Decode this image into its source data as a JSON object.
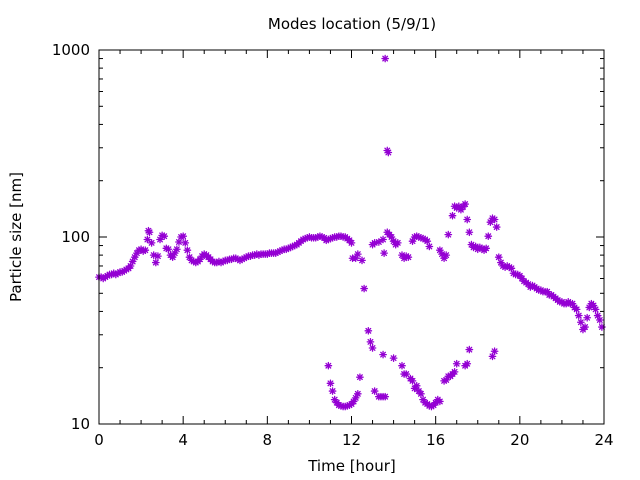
{
  "chart_data": {
    "type": "scatter",
    "title": "Modes location (5/9/1)",
    "xlabel": "Time [hour]",
    "ylabel": "Particle size [nm]",
    "xlim": [
      0,
      24
    ],
    "ylim": [
      10,
      1000
    ],
    "yscale": "log",
    "x_ticks": [
      0,
      4,
      8,
      12,
      16,
      20,
      24
    ],
    "x_tick_labels": [
      "0",
      "4",
      "8",
      "12",
      "16",
      "20",
      "24"
    ],
    "x_minor_step": 1,
    "y_ticks": [
      10,
      100,
      1000
    ],
    "y_tick_labels": [
      "10",
      "100",
      "1000"
    ],
    "grid": false,
    "marker": "asterisk",
    "color": "#9400d3",
    "series": [
      {
        "points": [
          [
            0.0,
            61
          ],
          [
            0.1,
            61
          ],
          [
            0.2,
            60
          ],
          [
            0.3,
            61
          ],
          [
            0.4,
            62
          ],
          [
            0.5,
            63
          ],
          [
            0.6,
            63
          ],
          [
            0.7,
            64
          ],
          [
            0.8,
            63
          ],
          [
            0.9,
            64
          ],
          [
            1.0,
            65
          ],
          [
            1.1,
            65
          ],
          [
            1.2,
            66
          ],
          [
            1.3,
            67
          ],
          [
            1.4,
            68
          ],
          [
            1.5,
            70
          ],
          [
            1.6,
            74
          ],
          [
            1.7,
            78
          ],
          [
            1.8,
            82
          ],
          [
            1.9,
            85
          ],
          [
            2.0,
            86
          ],
          [
            2.1,
            84
          ],
          [
            2.2,
            85
          ],
          [
            2.3,
            97
          ],
          [
            2.35,
            108
          ],
          [
            2.4,
            106
          ],
          [
            2.5,
            93
          ],
          [
            2.6,
            80
          ],
          [
            2.7,
            73
          ],
          [
            2.8,
            79
          ],
          [
            2.9,
            97
          ],
          [
            3.0,
            102
          ],
          [
            3.1,
            101
          ],
          [
            3.2,
            87
          ],
          [
            3.3,
            86
          ],
          [
            3.4,
            80
          ],
          [
            3.5,
            78
          ],
          [
            3.6,
            82
          ],
          [
            3.7,
            86
          ],
          [
            3.8,
            94
          ],
          [
            3.9,
            100
          ],
          [
            4.0,
            101
          ],
          [
            4.1,
            93
          ],
          [
            4.2,
            85
          ],
          [
            4.3,
            78
          ],
          [
            4.4,
            75
          ],
          [
            4.5,
            74
          ],
          [
            4.6,
            73
          ],
          [
            4.7,
            74
          ],
          [
            4.8,
            76
          ],
          [
            4.9,
            79
          ],
          [
            5.0,
            81
          ],
          [
            5.1,
            80
          ],
          [
            5.2,
            78
          ],
          [
            5.3,
            76
          ],
          [
            5.4,
            74
          ],
          [
            5.5,
            73
          ],
          [
            5.6,
            73
          ],
          [
            5.7,
            74
          ],
          [
            5.8,
            73
          ],
          [
            5.9,
            74
          ],
          [
            6.0,
            75
          ],
          [
            6.1,
            75
          ],
          [
            6.2,
            76
          ],
          [
            6.3,
            76
          ],
          [
            6.4,
            77
          ],
          [
            6.5,
            77
          ],
          [
            6.6,
            76
          ],
          [
            6.7,
            75
          ],
          [
            6.8,
            76
          ],
          [
            6.9,
            77
          ],
          [
            7.0,
            78
          ],
          [
            7.1,
            79
          ],
          [
            7.2,
            79
          ],
          [
            7.3,
            80
          ],
          [
            7.4,
            80
          ],
          [
            7.5,
            81
          ],
          [
            7.6,
            80
          ],
          [
            7.7,
            81
          ],
          [
            7.8,
            81
          ],
          [
            7.9,
            81
          ],
          [
            8.0,
            81
          ],
          [
            8.1,
            82
          ],
          [
            8.2,
            82
          ],
          [
            8.3,
            82
          ],
          [
            8.4,
            82
          ],
          [
            8.5,
            83
          ],
          [
            8.6,
            84
          ],
          [
            8.7,
            85
          ],
          [
            8.8,
            86
          ],
          [
            8.9,
            86
          ],
          [
            9.0,
            87
          ],
          [
            9.1,
            88
          ],
          [
            9.2,
            89
          ],
          [
            9.3,
            90
          ],
          [
            9.4,
            91
          ],
          [
            9.5,
            93
          ],
          [
            9.6,
            95
          ],
          [
            9.7,
            97
          ],
          [
            9.8,
            98
          ],
          [
            9.9,
            99
          ],
          [
            10.0,
            100
          ],
          [
            10.1,
            99
          ],
          [
            10.2,
            99
          ],
          [
            10.3,
            99
          ],
          [
            10.4,
            100
          ],
          [
            10.5,
            101
          ],
          [
            10.6,
            100
          ],
          [
            10.7,
            99
          ],
          [
            10.8,
            96
          ],
          [
            10.9,
            97
          ],
          [
            11.0,
            98
          ],
          [
            11.1,
            99
          ],
          [
            11.2,
            100
          ],
          [
            11.3,
            100
          ],
          [
            11.4,
            101
          ],
          [
            11.5,
            101
          ],
          [
            11.6,
            100
          ],
          [
            11.7,
            100
          ],
          [
            11.8,
            98
          ],
          [
            11.9,
            96
          ],
          [
            12.0,
            93
          ],
          [
            12.05,
            77
          ],
          [
            12.2,
            77
          ],
          [
            12.3,
            81
          ],
          [
            12.5,
            75
          ],
          [
            12.6,
            53
          ],
          [
            13.0,
            91
          ],
          [
            13.1,
            93
          ],
          [
            13.3,
            94
          ],
          [
            13.5,
            97
          ],
          [
            13.55,
            82
          ],
          [
            13.7,
            106
          ],
          [
            13.8,
            103
          ],
          [
            13.9,
            100
          ],
          [
            14.0,
            95
          ],
          [
            14.1,
            91
          ],
          [
            14.2,
            93
          ],
          [
            14.4,
            80
          ],
          [
            14.5,
            77
          ],
          [
            14.6,
            79
          ],
          [
            14.7,
            78
          ],
          [
            14.9,
            95
          ],
          [
            15.0,
            100
          ],
          [
            15.1,
            101
          ],
          [
            15.2,
            100
          ],
          [
            15.3,
            99
          ],
          [
            15.4,
            98
          ],
          [
            15.5,
            97
          ],
          [
            15.6,
            95
          ],
          [
            15.7,
            89
          ],
          [
            16.2,
            85
          ],
          [
            16.3,
            81
          ],
          [
            16.4,
            77
          ],
          [
            16.5,
            80
          ],
          [
            16.6,
            103
          ],
          [
            16.8,
            130
          ],
          [
            16.9,
            146
          ],
          [
            17.0,
            143
          ],
          [
            17.1,
            146
          ],
          [
            17.2,
            140
          ],
          [
            17.3,
            145
          ],
          [
            17.4,
            150
          ],
          [
            17.5,
            124
          ],
          [
            17.6,
            106
          ],
          [
            17.7,
            91
          ],
          [
            17.8,
            88
          ],
          [
            17.9,
            89
          ],
          [
            18.0,
            86
          ],
          [
            18.1,
            88
          ],
          [
            18.2,
            87
          ],
          [
            18.3,
            85
          ],
          [
            18.4,
            87
          ],
          [
            18.5,
            101
          ],
          [
            18.6,
            120
          ],
          [
            18.7,
            126
          ],
          [
            18.8,
            124
          ],
          [
            18.9,
            113
          ],
          [
            19.0,
            78
          ],
          [
            19.1,
            73
          ],
          [
            19.2,
            70
          ],
          [
            19.3,
            69
          ],
          [
            19.4,
            70
          ],
          [
            19.5,
            69
          ],
          [
            19.6,
            68
          ],
          [
            19.7,
            64
          ],
          [
            19.8,
            63
          ],
          [
            19.9,
            63
          ],
          [
            20.0,
            62
          ],
          [
            20.1,
            60
          ],
          [
            20.2,
            58
          ],
          [
            20.3,
            57
          ],
          [
            20.4,
            56
          ],
          [
            20.5,
            54
          ],
          [
            20.6,
            55
          ],
          [
            20.7,
            54
          ],
          [
            20.8,
            53
          ],
          [
            20.9,
            52
          ],
          [
            21.0,
            52
          ],
          [
            21.1,
            51
          ],
          [
            21.2,
            51
          ],
          [
            21.3,
            51
          ],
          [
            21.4,
            49
          ],
          [
            21.5,
            49
          ],
          [
            21.6,
            48
          ],
          [
            21.7,
            47
          ],
          [
            21.8,
            46
          ],
          [
            21.9,
            45
          ],
          [
            22.0,
            45
          ],
          [
            22.1,
            44
          ],
          [
            22.2,
            44
          ],
          [
            22.3,
            45
          ],
          [
            22.4,
            44
          ],
          [
            22.5,
            44
          ],
          [
            22.6,
            42
          ],
          [
            22.7,
            41
          ],
          [
            22.8,
            38
          ],
          [
            22.9,
            35
          ],
          [
            23.0,
            32
          ],
          [
            23.1,
            33
          ],
          [
            23.2,
            37
          ],
          [
            23.3,
            42
          ],
          [
            23.4,
            44
          ],
          [
            23.5,
            43
          ],
          [
            23.6,
            41
          ],
          [
            23.7,
            38
          ],
          [
            23.8,
            36
          ],
          [
            23.9,
            33
          ],
          [
            10.9,
            20.5
          ],
          [
            11.0,
            16.5
          ],
          [
            11.1,
            15
          ],
          [
            11.2,
            13.5
          ],
          [
            11.3,
            13
          ],
          [
            11.4,
            12.6
          ],
          [
            11.5,
            12.5
          ],
          [
            11.6,
            12.4
          ],
          [
            11.7,
            12.4
          ],
          [
            11.8,
            12.5
          ],
          [
            11.9,
            12.6
          ],
          [
            12.0,
            12.8
          ],
          [
            12.1,
            13.2
          ],
          [
            12.2,
            13.8
          ],
          [
            12.3,
            14.5
          ],
          [
            12.4,
            17.8
          ],
          [
            12.8,
            31.5
          ],
          [
            12.9,
            27.5
          ],
          [
            13.0,
            25.5
          ],
          [
            13.1,
            15
          ],
          [
            13.3,
            14
          ],
          [
            13.4,
            14
          ],
          [
            13.5,
            14
          ],
          [
            13.5,
            23.5
          ],
          [
            13.6,
            14
          ],
          [
            14.0,
            22.5
          ],
          [
            14.4,
            20.5
          ],
          [
            14.5,
            18.5
          ],
          [
            14.6,
            18.5
          ],
          [
            14.8,
            17.5
          ],
          [
            14.9,
            17
          ],
          [
            15.0,
            15.5
          ],
          [
            15.1,
            16
          ],
          [
            15.2,
            15
          ],
          [
            15.3,
            14.5
          ],
          [
            15.4,
            13.5
          ],
          [
            15.5,
            13
          ],
          [
            15.6,
            12.8
          ],
          [
            15.7,
            12.5
          ],
          [
            15.8,
            12.4
          ],
          [
            15.9,
            12.6
          ],
          [
            16.0,
            13
          ],
          [
            16.1,
            13.5
          ],
          [
            16.2,
            13.2
          ],
          [
            16.4,
            17
          ],
          [
            16.5,
            17.2
          ],
          [
            16.6,
            18
          ],
          [
            16.7,
            18
          ],
          [
            16.8,
            18.5
          ],
          [
            16.9,
            19
          ],
          [
            17.0,
            21
          ],
          [
            17.4,
            20.5
          ],
          [
            17.5,
            21
          ],
          [
            17.6,
            25
          ],
          [
            18.7,
            23
          ],
          [
            18.8,
            24.5
          ],
          [
            13.6,
            900
          ],
          [
            13.7,
            290
          ],
          [
            13.75,
            283
          ]
        ]
      }
    ]
  }
}
